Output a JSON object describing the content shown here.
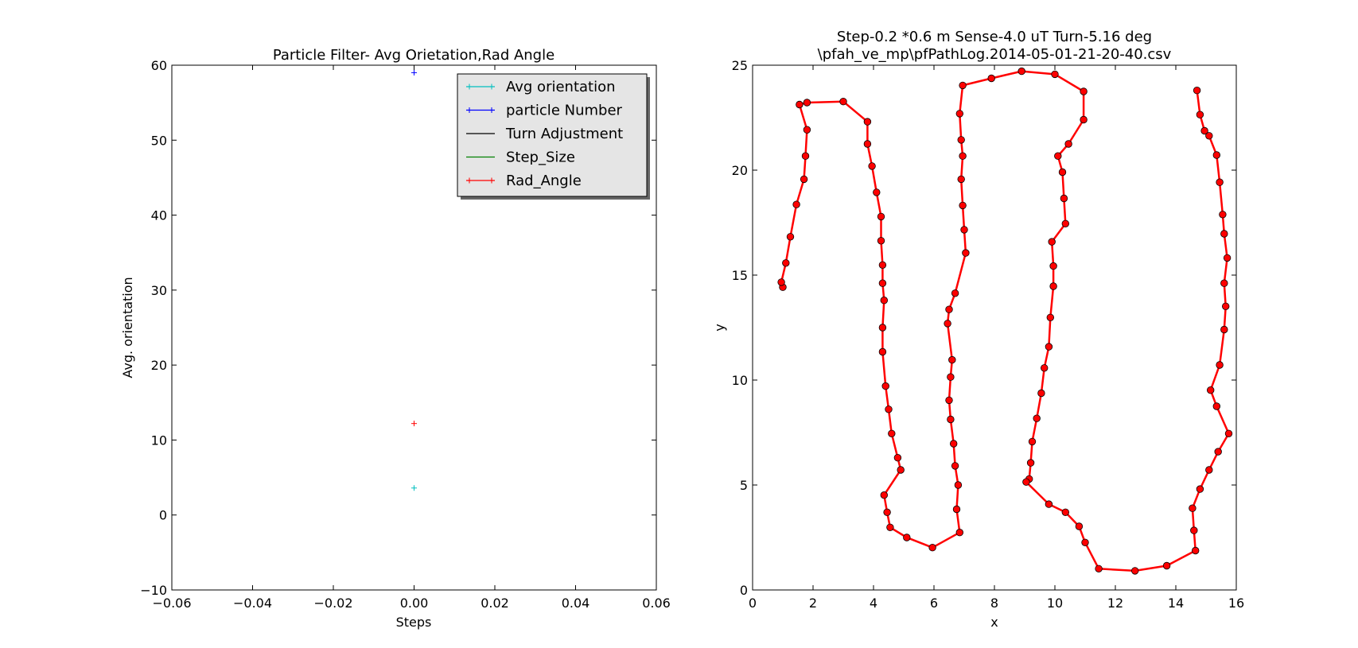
{
  "chart_data": [
    {
      "type": "scatter",
      "title": "Particle Filter- Avg Orietation,Rad Angle",
      "xlabel": "Steps",
      "ylabel": "Avg. orientation",
      "xlim": [
        -0.06,
        0.06
      ],
      "ylim": [
        -10,
        60
      ],
      "xticks": [
        "−0.06",
        "−0.04",
        "−0.02",
        "0.00",
        "0.02",
        "0.04",
        "0.06"
      ],
      "yticks": [
        "−10",
        "0",
        "10",
        "20",
        "30",
        "40",
        "50",
        "60"
      ],
      "grid": false,
      "legend_position": "top-right",
      "series": [
        {
          "name": "Avg orientation",
          "color": "#00bfbf",
          "marker": "+",
          "points": [
            [
              0.0,
              3.6
            ]
          ]
        },
        {
          "name": "particle Number",
          "color": "#0000ff",
          "marker": "+",
          "points": [
            [
              0.0,
              59.0
            ]
          ]
        },
        {
          "name": "Turn Adjustment",
          "color": "#000000",
          "marker": "line",
          "points": []
        },
        {
          "name": "Step_Size",
          "color": "#008000",
          "marker": "line",
          "points": []
        },
        {
          "name": "Rad_Angle",
          "color": "#ff0000",
          "marker": "+",
          "points": [
            [
              0.0,
              12.2
            ]
          ]
        }
      ]
    },
    {
      "type": "line",
      "title": "Step-0.2 *0.6 m  Sense-4.0 uT Turn-5.16 deg",
      "subtitle": "\\pfah_ve_mp\\pfPathLog.2014-05-01-21-20-40.csv",
      "xlabel": "x",
      "ylabel": "y",
      "xlim": [
        0,
        16
      ],
      "ylim": [
        0,
        26
      ],
      "xticks": [
        "0",
        "2",
        "4",
        "6",
        "8",
        "10",
        "12",
        "14",
        "16"
      ],
      "yticks": [
        "0",
        "5",
        "10",
        "15",
        "20",
        "25"
      ],
      "grid": false,
      "series": [
        {
          "color": "#ff0000",
          "marker": "circle",
          "points": [
            [
              1.0,
              15.0
            ],
            [
              0.95,
              15.25
            ],
            [
              1.1,
              16.2
            ],
            [
              1.25,
              17.5
            ],
            [
              1.45,
              19.1
            ],
            [
              1.7,
              20.35
            ],
            [
              1.75,
              21.5
            ],
            [
              1.8,
              22.8
            ],
            [
              1.55,
              24.05
            ],
            [
              1.8,
              24.15
            ],
            [
              3.0,
              24.2
            ],
            [
              3.8,
              23.2
            ],
            [
              3.8,
              22.1
            ],
            [
              3.95,
              21.0
            ],
            [
              4.1,
              19.7
            ],
            [
              4.25,
              18.5
            ],
            [
              4.25,
              17.3
            ],
            [
              4.3,
              16.1
            ],
            [
              4.3,
              15.2
            ],
            [
              4.35,
              14.35
            ],
            [
              4.3,
              13.0
            ],
            [
              4.3,
              11.8
            ],
            [
              4.4,
              10.1
            ],
            [
              4.5,
              8.95
            ],
            [
              4.6,
              7.75
            ],
            [
              4.8,
              6.55
            ],
            [
              4.9,
              5.95
            ],
            [
              4.35,
              4.7
            ],
            [
              4.45,
              3.85
            ],
            [
              4.55,
              3.1
            ],
            [
              5.1,
              2.6
            ],
            [
              5.95,
              2.1
            ],
            [
              6.85,
              2.85
            ],
            [
              6.75,
              4.0
            ],
            [
              6.8,
              5.2
            ],
            [
              6.7,
              6.15
            ],
            [
              6.65,
              7.25
            ],
            [
              6.55,
              8.45
            ],
            [
              6.5,
              9.4
            ],
            [
              6.55,
              10.55
            ],
            [
              6.6,
              11.4
            ],
            [
              6.45,
              13.2
            ],
            [
              6.5,
              13.9
            ],
            [
              6.7,
              14.7
            ],
            [
              7.05,
              16.7
            ],
            [
              7.0,
              17.85
            ],
            [
              6.95,
              19.05
            ],
            [
              6.9,
              20.35
            ],
            [
              6.95,
              21.5
            ],
            [
              6.9,
              22.3
            ],
            [
              6.85,
              23.6
            ],
            [
              6.95,
              25.0
            ],
            [
              7.9,
              25.35
            ],
            [
              8.9,
              25.7
            ],
            [
              10.0,
              25.55
            ],
            [
              10.95,
              24.7
            ],
            [
              10.95,
              23.3
            ],
            [
              10.45,
              22.1
            ],
            [
              10.1,
              21.5
            ],
            [
              10.25,
              20.7
            ],
            [
              10.3,
              19.4
            ],
            [
              10.35,
              18.15
            ],
            [
              9.9,
              17.25
            ],
            [
              9.95,
              16.05
            ],
            [
              9.95,
              15.05
            ],
            [
              9.85,
              13.5
            ],
            [
              9.8,
              12.05
            ],
            [
              9.65,
              11.0
            ],
            [
              9.55,
              9.75
            ],
            [
              9.4,
              8.5
            ],
            [
              9.25,
              7.35
            ],
            [
              9.2,
              6.3
            ],
            [
              9.15,
              5.5
            ],
            [
              9.05,
              5.35
            ],
            [
              9.8,
              4.25
            ],
            [
              10.35,
              3.85
            ],
            [
              10.8,
              3.15
            ],
            [
              11.0,
              2.35
            ],
            [
              11.45,
              1.05
            ],
            [
              12.65,
              0.95
            ],
            [
              13.7,
              1.2
            ],
            [
              14.65,
              1.95
            ],
            [
              14.6,
              2.95
            ],
            [
              14.55,
              4.05
            ],
            [
              14.8,
              5.0
            ],
            [
              15.1,
              5.95
            ],
            [
              15.4,
              6.85
            ],
            [
              15.75,
              7.75
            ],
            [
              15.35,
              9.1
            ],
            [
              15.15,
              9.9
            ],
            [
              15.45,
              11.15
            ],
            [
              15.6,
              12.9
            ],
            [
              15.65,
              14.05
            ],
            [
              15.6,
              15.2
            ],
            [
              15.7,
              16.45
            ],
            [
              15.6,
              17.65
            ],
            [
              15.55,
              18.6
            ],
            [
              15.45,
              20.2
            ],
            [
              15.35,
              21.55
            ],
            [
              15.1,
              22.5
            ],
            [
              14.95,
              22.75
            ],
            [
              14.8,
              23.55
            ],
            [
              14.7,
              24.75
            ]
          ]
        }
      ]
    }
  ]
}
